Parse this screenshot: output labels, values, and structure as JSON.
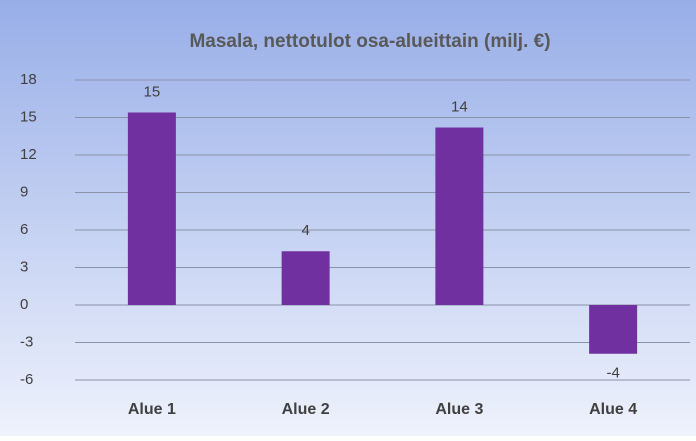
{
  "chart_data": {
    "type": "bar",
    "title": "Masala, nettotulot osa-alueittain (milj. €)",
    "categories": [
      "Alue 1",
      "Alue 2",
      "Alue 3",
      "Alue 4"
    ],
    "values": [
      15.4,
      4.3,
      14.2,
      -3.9
    ],
    "value_labels": [
      "15",
      "4",
      "14",
      "-4"
    ],
    "color": "#7030a0",
    "ylim": [
      -6,
      18
    ],
    "yticks": [
      -6,
      -3,
      0,
      3,
      6,
      9,
      12,
      15,
      18
    ],
    "grid": true
  }
}
